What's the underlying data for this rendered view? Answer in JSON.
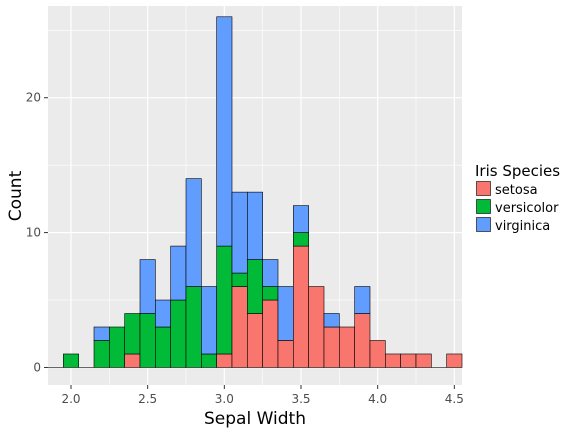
{
  "chart_data": {
    "type": "bar",
    "subtype": "stacked-histogram",
    "xlabel": "Sepal Width",
    "ylabel": "Count",
    "xlim": [
      1.85,
      4.55
    ],
    "ylim": [
      -1.3,
      26.8
    ],
    "x_ticks": [
      2.0,
      2.5,
      3.0,
      3.5,
      4.0,
      4.5
    ],
    "x_tick_labels": [
      "2.0",
      "2.5",
      "3.0",
      "3.5",
      "4.0",
      "4.5"
    ],
    "y_ticks": [
      0,
      10,
      20
    ],
    "y_tick_labels": [
      "0",
      "10",
      "20"
    ],
    "bin_width": 0.1,
    "bins": [
      1.9,
      2.0,
      2.1,
      2.2,
      2.3,
      2.4,
      2.5,
      2.6,
      2.7,
      2.8,
      2.9,
      3.0,
      3.1,
      3.2,
      3.3,
      3.4,
      3.5,
      3.6,
      3.7,
      3.8,
      3.9,
      4.0,
      4.1,
      4.2,
      4.3,
      4.4,
      4.5
    ],
    "series": [
      {
        "name": "setosa",
        "color": "#F8766D",
        "values": [
          0,
          0,
          0,
          0,
          0,
          1,
          0,
          0,
          0,
          0,
          0,
          1,
          6,
          4,
          5,
          2,
          9,
          6,
          3,
          3,
          4,
          2,
          1,
          1,
          1,
          0,
          1
        ]
      },
      {
        "name": "versicolor",
        "color": "#00BA38",
        "values": [
          0,
          1,
          0,
          2,
          3,
          3,
          4,
          3,
          5,
          6,
          1,
          8,
          1,
          4,
          1,
          0,
          1,
          0,
          0,
          0,
          0,
          0,
          0,
          0,
          0,
          0,
          0
        ]
      },
      {
        "name": "virginica",
        "color": "#619CFF",
        "values": [
          0,
          0,
          0,
          1,
          0,
          0,
          4,
          2,
          4,
          8,
          5,
          17,
          6,
          5,
          2,
          4,
          2,
          0,
          1,
          0,
          2,
          0,
          0,
          0,
          0,
          0,
          0
        ]
      }
    ],
    "grid": true,
    "legend": {
      "title": "Iris Species",
      "position": "right"
    }
  },
  "colors": {
    "panel_background": "#EBEBEB",
    "grid": "#FFFFFF",
    "bar_outline": "#000000"
  }
}
